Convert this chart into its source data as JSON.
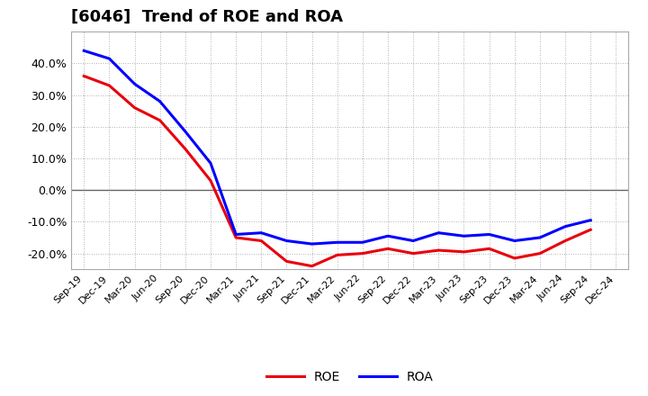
{
  "title": "[6046]  Trend of ROE and ROA",
  "labels": [
    "Sep-19",
    "Dec-19",
    "Mar-20",
    "Jun-20",
    "Sep-20",
    "Dec-20",
    "Mar-21",
    "Jun-21",
    "Sep-21",
    "Dec-21",
    "Mar-22",
    "Jun-22",
    "Sep-22",
    "Dec-22",
    "Mar-23",
    "Jun-23",
    "Sep-23",
    "Dec-23",
    "Mar-24",
    "Jun-24",
    "Sep-24",
    "Dec-24"
  ],
  "ROE": [
    36.0,
    33.0,
    26.0,
    22.0,
    13.0,
    3.0,
    -15.0,
    -16.0,
    -22.5,
    -24.0,
    -20.5,
    -20.0,
    -18.5,
    -20.0,
    -19.0,
    -19.5,
    -18.5,
    -21.5,
    -20.0,
    -16.0,
    -12.5,
    null
  ],
  "ROA": [
    44.0,
    41.5,
    33.5,
    28.0,
    18.5,
    8.5,
    -14.0,
    -13.5,
    -16.0,
    -17.0,
    -16.5,
    -16.5,
    -14.5,
    -16.0,
    -13.5,
    -14.5,
    -14.0,
    -16.0,
    -15.0,
    -11.5,
    -9.5,
    null
  ],
  "roe_color": "#e8000d",
  "roa_color": "#0000ff",
  "background_color": "#ffffff",
  "grid_color": "#999999",
  "ylim": [
    -25,
    50
  ],
  "yticks": [
    -20.0,
    -10.0,
    0.0,
    10.0,
    20.0,
    30.0,
    40.0
  ],
  "line_width": 2.2,
  "title_fontsize": 13
}
